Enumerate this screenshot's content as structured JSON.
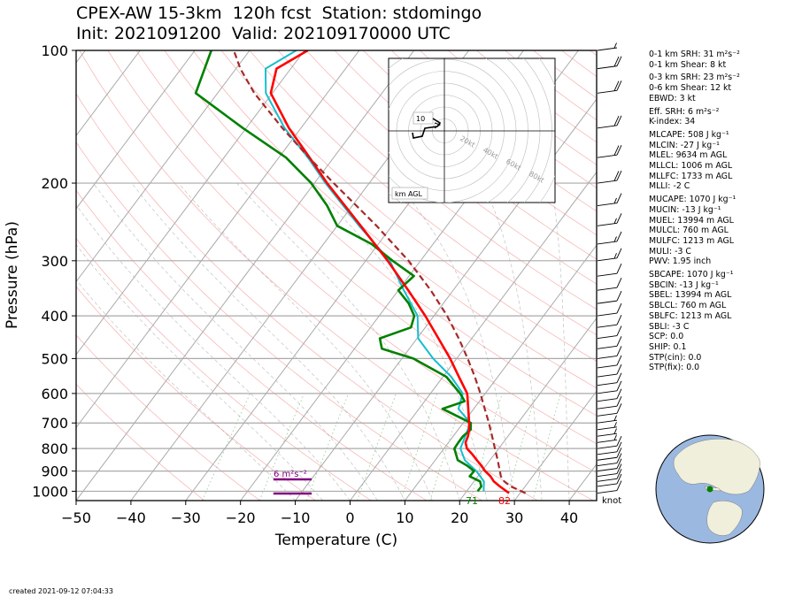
{
  "title": {
    "line1": "CPEX-AW 15-3km  120h fcst  Station: stdomingo",
    "line2": "Init: 2021091200  Valid: 202109170000 UTC"
  },
  "footer": "created 2021-09-12 07:04:33",
  "indices": [
    "0-1 km SRH: 31 m²s⁻²",
    "0-1 km Shear: 8 kt",
    "0-3 km SRH: 23 m²s⁻²",
    "0-6 km Shear: 12 kt",
    "EBWD: 3 kt",
    "Eff. SRH: 6 m²s⁻²",
    "K-index: 34",
    "MLCAPE: 508 J kg⁻¹",
    "MLCIN: -27 J kg⁻¹",
    "MLEL: 9634 m AGL",
    "MLLCL: 1006 m AGL",
    "MLLFC: 1733 m AGL",
    "MLLI: -2 C",
    "MUCAPE: 1070 J kg⁻¹",
    "MUCIN: -13 J kg⁻¹",
    "MUEL: 13994 m AGL",
    "MULCL: 760 m AGL",
    "MULFC: 1213 m AGL",
    "MULI: -3 C",
    "PWV: 1.95 inch",
    "SBCAPE: 1070 J kg⁻¹",
    "SBCIN: -13 J kg⁻¹",
    "SBEL: 13994 m AGL",
    "SBLCL: 760 m AGL",
    "SBLFC: 1213 m AGL",
    "SBLI: -3 C",
    "SCP: 0.0",
    "SHIP: 0.1",
    "STP(cin): 0.0",
    "STP(fix): 0.0"
  ],
  "hodograph": {
    "inner_label": "10",
    "ring_labels": [
      "20kt",
      "40kt",
      "60kt",
      "80kt"
    ],
    "legend": "km AGL"
  },
  "srh_label": "6 m²s⁻²",
  "surface_temp_label": "82",
  "surface_dew_label": "71",
  "barb_units": "knot",
  "colors": {
    "temperature": "#ff0000",
    "dewpoint": "#008000",
    "wetbulb": "#17becf",
    "parcel": "#a52a2a",
    "srh_bars": "#800080",
    "globe_ocean": "#9bb8e0",
    "globe_land": "#f0efdc"
  },
  "chart_data": {
    "type": "line",
    "xlabel": "Temperature (C)",
    "ylabel": "Pressure (hPa)",
    "xlim": [
      -50,
      45
    ],
    "ylim": [
      1050,
      100
    ],
    "y_scale": "log",
    "x_ticks": [
      -50,
      -40,
      -30,
      -20,
      -10,
      0,
      10,
      20,
      30,
      40
    ],
    "y_ticks": [
      100,
      200,
      300,
      400,
      500,
      600,
      700,
      800,
      900,
      1000
    ],
    "skew": true,
    "series": [
      {
        "key": "temperature",
        "points": [
          [
            1010,
            28
          ],
          [
            975,
            25.4
          ],
          [
            950,
            23.6
          ],
          [
            925,
            22.3
          ],
          [
            900,
            20.6
          ],
          [
            875,
            19.2
          ],
          [
            850,
            17.6
          ],
          [
            825,
            16.0
          ],
          [
            800,
            14.2
          ],
          [
            775,
            13.1
          ],
          [
            750,
            12.7
          ],
          [
            725,
            12.0
          ],
          [
            700,
            11.1
          ],
          [
            650,
            9.0
          ],
          [
            600,
            6.7
          ],
          [
            550,
            2.9
          ],
          [
            500,
            -1.2
          ],
          [
            450,
            -6.1
          ],
          [
            400,
            -11.6
          ],
          [
            350,
            -18.2
          ],
          [
            300,
            -26.0
          ],
          [
            250,
            -35.7
          ],
          [
            200,
            -47.7
          ],
          [
            175,
            -54.4
          ],
          [
            150,
            -62.2
          ],
          [
            125,
            -70.3
          ],
          [
            110,
            -72.6
          ],
          [
            100,
            -69.4
          ]
        ]
      },
      {
        "key": "dewpoint",
        "points": [
          [
            1000,
            22
          ],
          [
            975,
            22.0
          ],
          [
            950,
            21.1
          ],
          [
            925,
            18.5
          ],
          [
            900,
            18.6
          ],
          [
            875,
            16.6
          ],
          [
            850,
            14.1
          ],
          [
            800,
            11.9
          ],
          [
            775,
            11.8
          ],
          [
            750,
            11.8
          ],
          [
            725,
            12.3
          ],
          [
            700,
            11.4
          ],
          [
            650,
            4.3
          ],
          [
            625,
            7.3
          ],
          [
            600,
            5.4
          ],
          [
            550,
            0.6
          ],
          [
            500,
            -7.9
          ],
          [
            475,
            -15.0
          ],
          [
            450,
            -16.8
          ],
          [
            425,
            -12.6
          ],
          [
            400,
            -13.6
          ],
          [
            375,
            -16.3
          ],
          [
            350,
            -20.0
          ],
          [
            325,
            -19.1
          ],
          [
            300,
            -25.1
          ],
          [
            275,
            -31.2
          ],
          [
            250,
            -40.0
          ],
          [
            225,
            -44.6
          ],
          [
            200,
            -50.6
          ],
          [
            175,
            -58.7
          ],
          [
            150,
            -70.6
          ],
          [
            125,
            -84.0
          ],
          [
            100,
            -87.0
          ]
        ]
      },
      {
        "key": "wetbulb",
        "points": [
          [
            1000,
            23.1
          ],
          [
            950,
            21.8
          ],
          [
            900,
            19.0
          ],
          [
            850,
            15.4
          ],
          [
            800,
            13.0
          ],
          [
            750,
            12.2
          ],
          [
            700,
            11.3
          ],
          [
            650,
            7.2
          ],
          [
            600,
            5.9
          ],
          [
            550,
            1.5
          ],
          [
            500,
            -4.3
          ],
          [
            450,
            -9.8
          ],
          [
            400,
            -13.0
          ],
          [
            350,
            -19.0
          ],
          [
            300,
            -25.6
          ],
          [
            250,
            -36.0
          ],
          [
            200,
            -48.0
          ],
          [
            175,
            -54.7
          ],
          [
            150,
            -63.0
          ],
          [
            125,
            -71.2
          ],
          [
            110,
            -74.6
          ],
          [
            100,
            -71.5
          ]
        ]
      },
      {
        "key": "parcel",
        "points": [
          [
            1010,
            31
          ],
          [
            975,
            27.4
          ],
          [
            950,
            25.5
          ],
          [
            925,
            24.2
          ],
          [
            900,
            23.3
          ],
          [
            850,
            21.4
          ],
          [
            800,
            19.3
          ],
          [
            750,
            17.1
          ],
          [
            700,
            14.7
          ],
          [
            650,
            12.0
          ],
          [
            600,
            9.1
          ],
          [
            550,
            5.8
          ],
          [
            500,
            2.0
          ],
          [
            450,
            -2.4
          ],
          [
            400,
            -7.6
          ],
          [
            350,
            -14.1
          ],
          [
            300,
            -22.2
          ],
          [
            250,
            -32.8
          ],
          [
            200,
            -46.5
          ],
          [
            175,
            -54.5
          ],
          [
            150,
            -63.4
          ],
          [
            125,
            -73.3
          ],
          [
            110,
            -79.2
          ],
          [
            100,
            -82.9
          ]
        ]
      }
    ],
    "srh_bars": [
      {
        "temp_start": -14,
        "temp_end": -7,
        "pressure": 1005
      },
      {
        "temp_start": -14,
        "temp_end": -7,
        "pressure": 1010
      }
    ],
    "wind_barbs": [
      {
        "pressure": 1010,
        "speed_kt": 10
      },
      {
        "pressure": 975,
        "speed_kt": 10
      },
      {
        "pressure": 950,
        "speed_kt": 10
      },
      {
        "pressure": 925,
        "speed_kt": 10
      },
      {
        "pressure": 900,
        "speed_kt": 10
      },
      {
        "pressure": 875,
        "speed_kt": 10
      },
      {
        "pressure": 850,
        "speed_kt": 10
      },
      {
        "pressure": 825,
        "speed_kt": 10
      },
      {
        "pressure": 800,
        "speed_kt": 10
      },
      {
        "pressure": 775,
        "speed_kt": 5
      },
      {
        "pressure": 750,
        "speed_kt": 5
      },
      {
        "pressure": 725,
        "speed_kt": 5
      },
      {
        "pressure": 700,
        "speed_kt": 5
      },
      {
        "pressure": 675,
        "speed_kt": 10
      },
      {
        "pressure": 650,
        "speed_kt": 10
      },
      {
        "pressure": 625,
        "speed_kt": 10
      },
      {
        "pressure": 600,
        "speed_kt": 10
      },
      {
        "pressure": 575,
        "speed_kt": 10
      },
      {
        "pressure": 550,
        "speed_kt": 10
      },
      {
        "pressure": 525,
        "speed_kt": 10
      },
      {
        "pressure": 500,
        "speed_kt": 10
      },
      {
        "pressure": 475,
        "speed_kt": 10
      },
      {
        "pressure": 450,
        "speed_kt": 10
      },
      {
        "pressure": 425,
        "speed_kt": 10
      },
      {
        "pressure": 400,
        "speed_kt": 10
      },
      {
        "pressure": 375,
        "speed_kt": 10
      },
      {
        "pressure": 350,
        "speed_kt": 10
      },
      {
        "pressure": 325,
        "speed_kt": 10
      },
      {
        "pressure": 300,
        "speed_kt": 15
      },
      {
        "pressure": 275,
        "speed_kt": 15
      },
      {
        "pressure": 250,
        "speed_kt": 15
      },
      {
        "pressure": 225,
        "speed_kt": 15
      },
      {
        "pressure": 200,
        "speed_kt": 20
      },
      {
        "pressure": 175,
        "speed_kt": 20
      },
      {
        "pressure": 150,
        "speed_kt": 20
      },
      {
        "pressure": 125,
        "speed_kt": 20
      },
      {
        "pressure": 110,
        "speed_kt": 20
      },
      {
        "pressure": 100,
        "speed_kt": 5
      }
    ]
  }
}
